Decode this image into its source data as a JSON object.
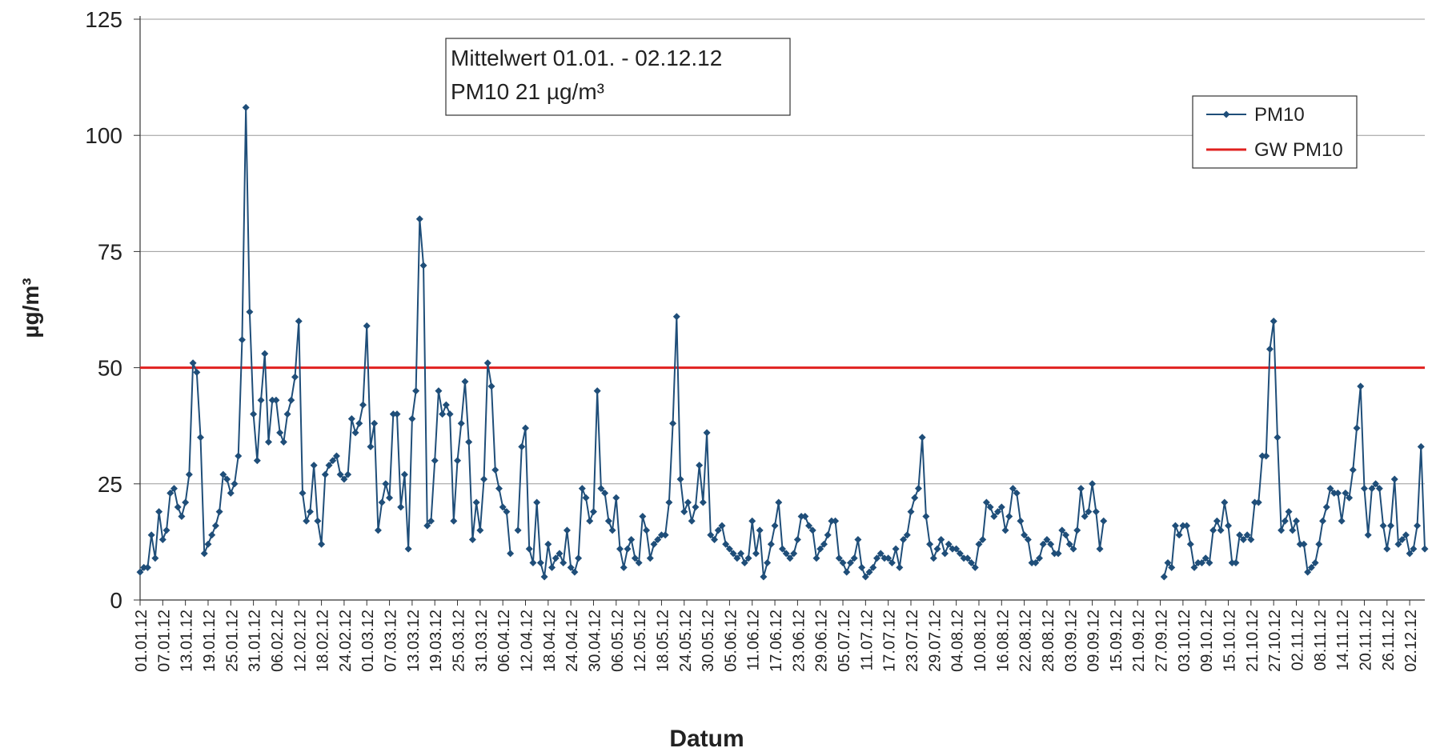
{
  "chart_data": {
    "type": "line",
    "xlabel": "Datum",
    "ylabel": "µg/m³",
    "ylim": [
      0,
      125
    ],
    "yticks": [
      0,
      25,
      50,
      75,
      100,
      125
    ],
    "grid": true,
    "legend": {
      "position": "top-right",
      "entries": [
        "PM10",
        "GW PM10"
      ]
    },
    "annotation": {
      "lines": [
        "Mittelwert 01.01. - 02.12.12",
        "PM10  21 µg/m³"
      ],
      "position": "top-center-left"
    },
    "x_tick_labels": [
      "01.01.12",
      "07.01.12",
      "13.01.12",
      "19.01.12",
      "25.01.12",
      "31.01.12",
      "06.02.12",
      "12.02.12",
      "18.02.12",
      "24.02.12",
      "01.03.12",
      "07.03.12",
      "13.03.12",
      "19.03.12",
      "25.03.12",
      "31.03.12",
      "06.04.12",
      "12.04.12",
      "18.04.12",
      "24.04.12",
      "30.04.12",
      "06.05.12",
      "12.05.12",
      "18.05.12",
      "24.05.12",
      "30.05.12",
      "05.06.12",
      "11.06.12",
      "17.06.12",
      "23.06.12",
      "29.06.12",
      "05.07.12",
      "11.07.12",
      "17.07.12",
      "23.07.12",
      "29.07.12",
      "04.08.12",
      "10.08.12",
      "16.08.12",
      "22.08.12",
      "28.08.12",
      "03.09.12",
      "09.09.12",
      "15.09.12",
      "21.09.12",
      "27.09.12",
      "03.10.12",
      "09.10.12",
      "15.10.12",
      "21.10.12",
      "27.10.12",
      "02.11.12",
      "08.11.12",
      "14.11.12",
      "20.11.12",
      "26.11.12",
      "02.12.12"
    ],
    "colors": {
      "pm10": "#1f4e79",
      "limit": "#e0211f",
      "grid": "#9a9a9a"
    },
    "series": [
      {
        "name": "PM10",
        "start_date": "01.01.12",
        "values": [
          6,
          7,
          7,
          14,
          9,
          19,
          13,
          15,
          23,
          24,
          20,
          18,
          21,
          27,
          51,
          49,
          35,
          10,
          12,
          14,
          16,
          19,
          27,
          26,
          23,
          25,
          31,
          56,
          106,
          62,
          40,
          30,
          43,
          53,
          34,
          43,
          43,
          36,
          34,
          40,
          43,
          48,
          60,
          23,
          17,
          19,
          29,
          17,
          12,
          27,
          29,
          30,
          31,
          27,
          26,
          27,
          39,
          36,
          38,
          42,
          59,
          33,
          38,
          15,
          21,
          25,
          22,
          40,
          40,
          20,
          27,
          11,
          39,
          45,
          82,
          72,
          16,
          17,
          30,
          45,
          40,
          42,
          40,
          17,
          30,
          38,
          47,
          34,
          13,
          21,
          15,
          26,
          51,
          46,
          28,
          24,
          20,
          19,
          10,
          null,
          15,
          33,
          37,
          11,
          8,
          21,
          8,
          5,
          12,
          7,
          9,
          10,
          8,
          15,
          7,
          6,
          9,
          24,
          22,
          17,
          19,
          45,
          24,
          23,
          17,
          15,
          22,
          11,
          7,
          11,
          13,
          9,
          8,
          18,
          15,
          9,
          12,
          13,
          14,
          14,
          21,
          38,
          61,
          26,
          19,
          21,
          17,
          20,
          29,
          21,
          36,
          14,
          13,
          15,
          16,
          12,
          11,
          10,
          9,
          10,
          8,
          9,
          17,
          10,
          15,
          5,
          8,
          12,
          16,
          21,
          11,
          10,
          9,
          10,
          13,
          18,
          18,
          16,
          15,
          9,
          11,
          12,
          14,
          17,
          17,
          9,
          8,
          6,
          8,
          9,
          13,
          7,
          5,
          6,
          7,
          9,
          10,
          9,
          9,
          8,
          11,
          7,
          13,
          14,
          19,
          22,
          24,
          35,
          18,
          12,
          9,
          11,
          13,
          10,
          12,
          11,
          11,
          10,
          9,
          9,
          8,
          7,
          12,
          13,
          21,
          20,
          18,
          19,
          20,
          15,
          18,
          24,
          23,
          17,
          14,
          13,
          8,
          8,
          9,
          12,
          13,
          12,
          10,
          10,
          15,
          14,
          12,
          11,
          15,
          24,
          18,
          19,
          25,
          19,
          11,
          17,
          null,
          null,
          null,
          null,
          null,
          null,
          null,
          null,
          null,
          null,
          null,
          null,
          null,
          null,
          null,
          5,
          8,
          7,
          16,
          14,
          16,
          16,
          12,
          7,
          8,
          8,
          9,
          8,
          15,
          17,
          15,
          21,
          16,
          8,
          8,
          14,
          13,
          14,
          13,
          21,
          21,
          31,
          31,
          54,
          60,
          35,
          15,
          17,
          19,
          15,
          17,
          12,
          12,
          6,
          7,
          8,
          12,
          17,
          20,
          24,
          23,
          23,
          17,
          23,
          22,
          28,
          37,
          46,
          24,
          14,
          24,
          25,
          24,
          16,
          11,
          16,
          26,
          12,
          13,
          14,
          10,
          11,
          16,
          33,
          11
        ]
      },
      {
        "name": "GW PM10",
        "values": [
          50,
          50
        ]
      }
    ]
  }
}
